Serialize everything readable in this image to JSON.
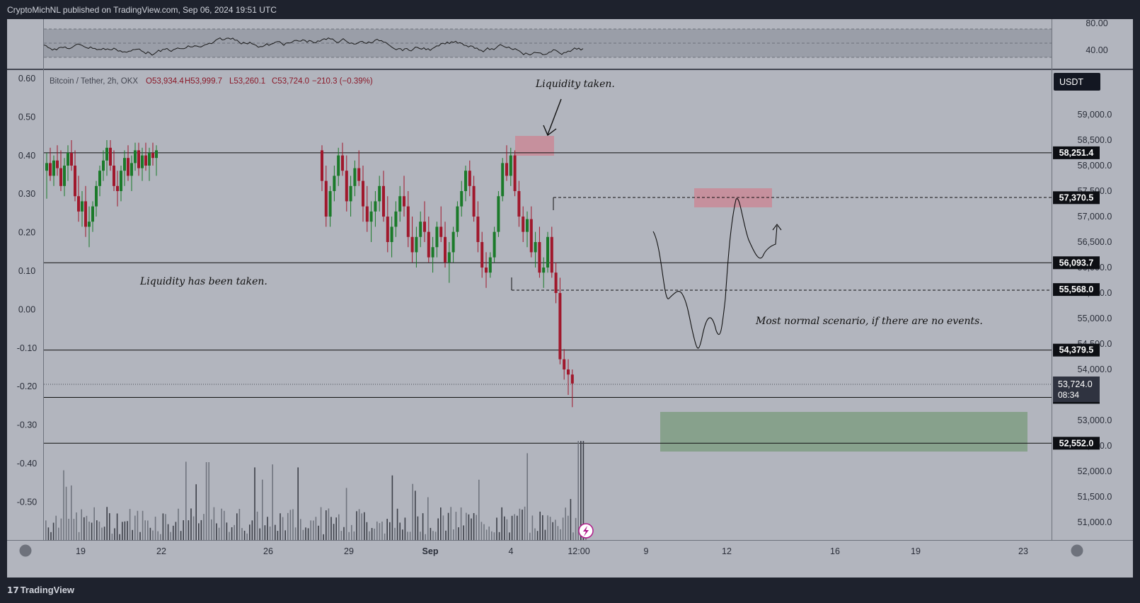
{
  "header": {
    "published": "CryptoMichNL published on TradingView.com, Sep 06, 2024 19:51 UTC"
  },
  "footer": {
    "brand": "TradingView",
    "brand_mark": "17"
  },
  "legend": {
    "symbol": "Bitcoin / Tether, 2h, OKX",
    "open": "O53,934.4",
    "high": "H53,999.7",
    "low": "L53,260.1",
    "close": "C53,724.0",
    "change": "−210.3 (−0.39%)"
  },
  "currency_button": "USDT",
  "colors": {
    "background": "#b2b5be",
    "frame": "#1e222d",
    "up_candle": "#1b7a2a",
    "down_candle": "#a0182c",
    "liquidity_zone": "#c98a98",
    "target_zone": "#7f9e84",
    "volume": "#3c3f48"
  },
  "chart_data": {
    "type": "candlestick",
    "symbol": "Bitcoin / Tether",
    "interval": "2h",
    "exchange": "OKX",
    "price_axis": {
      "ticks": [
        "59,000.0",
        "58,500.0",
        "58,000.0",
        "57,500.0",
        "57,000.0",
        "56,500.0",
        "56,000.0",
        "55,500.0",
        "55,000.0",
        "54,500.0",
        "54,000.0",
        "53,000.0",
        "52,500.0",
        "52,000.0",
        "51,500.0",
        "51,000.0"
      ],
      "tick_values": [
        59000,
        58500,
        58000,
        57500,
        57000,
        56500,
        56000,
        55500,
        55000,
        54500,
        54000,
        53000,
        52500,
        52000,
        51500,
        51000
      ],
      "range": [
        50700,
        59900
      ]
    },
    "price_levels": [
      {
        "value": 58251.4,
        "label": "58,251.4",
        "style": "solid"
      },
      {
        "value": 57370.5,
        "label": "57,370.5",
        "style": "dashed"
      },
      {
        "value": 56093.7,
        "label": "56,093.7",
        "style": "solid"
      },
      {
        "value": 55568.0,
        "label": "55,568.0",
        "style": "dashed"
      },
      {
        "value": 54379.5,
        "label": "54,379.5",
        "style": "solid"
      },
      {
        "value": 53451.7,
        "label": "53,451.7",
        "style": "solid"
      },
      {
        "value": 52552.0,
        "label": "52,552.0",
        "style": "solid"
      }
    ],
    "last_price": {
      "value": 53724.0,
      "label": "53,724.0",
      "countdown": "08:34"
    },
    "left_axis": {
      "ticks": [
        "0.60",
        "0.50",
        "0.40",
        "0.30",
        "0.20",
        "0.10",
        "0.00",
        "-0.10",
        "-0.20",
        "-0.30",
        "-0.40",
        "-0.50"
      ],
      "values": [
        0.6,
        0.5,
        0.4,
        0.3,
        0.2,
        0.1,
        0.0,
        -0.1,
        -0.2,
        -0.3,
        -0.4,
        -0.5
      ]
    },
    "rsi_panel": {
      "ticks": [
        "80.00",
        "40.00"
      ],
      "values": [
        80,
        40
      ],
      "range": [
        30,
        90
      ]
    },
    "time_axis": {
      "labels": [
        "19",
        "22",
        "26",
        "29",
        "Sep",
        "4",
        "12:00",
        "9",
        "12",
        "16",
        "19",
        "23"
      ]
    },
    "annotations": {
      "liquidity_taken": "Liquidity taken.",
      "liquidity_has_been_taken": "Liquidity has been taken.",
      "scenario": "Most normal scenario, if there are no events."
    },
    "candles_ohlc": [
      [
        57900,
        58250,
        57350,
        58050
      ],
      [
        58050,
        58350,
        57700,
        57800
      ],
      [
        57800,
        58200,
        57600,
        58100
      ],
      [
        58100,
        58400,
        57800,
        57950
      ],
      [
        57950,
        58300,
        57500,
        57600
      ],
      [
        57600,
        58150,
        57400,
        58000
      ],
      [
        58000,
        58400,
        57700,
        58250
      ],
      [
        58250,
        58500,
        57900,
        58000
      ],
      [
        58000,
        58300,
        57300,
        57400
      ],
      [
        57400,
        57800,
        56900,
        57100
      ],
      [
        57100,
        57500,
        56800,
        57300
      ],
      [
        57300,
        57600,
        56600,
        56800
      ],
      [
        56800,
        57200,
        56400,
        56900
      ],
      [
        56900,
        57300,
        56700,
        57200
      ],
      [
        57200,
        57700,
        57000,
        57600
      ],
      [
        57600,
        58000,
        57400,
        57900
      ],
      [
        57900,
        58300,
        57700,
        58100
      ],
      [
        58100,
        58500,
        57800,
        58350
      ],
      [
        58350,
        58500,
        57900,
        58000
      ],
      [
        58000,
        58300,
        57500,
        57600
      ],
      [
        57600,
        57900,
        57200,
        57500
      ],
      [
        57500,
        58000,
        57300,
        57900
      ],
      [
        57900,
        58300,
        57600,
        58150
      ],
      [
        58150,
        58400,
        57700,
        57800
      ],
      [
        57800,
        58200,
        57500,
        58050
      ],
      [
        58050,
        58450,
        57900,
        58300
      ],
      [
        58300,
        58450,
        57800,
        57950
      ],
      [
        57950,
        58350,
        57700,
        58200
      ],
      [
        58200,
        58450,
        57900,
        58000
      ],
      [
        58000,
        58350,
        57700,
        58250
      ],
      [
        58250,
        58450,
        58000,
        58150
      ],
      [
        58150,
        58400,
        57800,
        58300
      ],
      [
        58300,
        58400,
        57500,
        57700
      ],
      [
        57700,
        58000,
        56800,
        57000
      ],
      [
        57000,
        57600,
        56800,
        57500
      ],
      [
        57500,
        58000,
        57300,
        57800
      ],
      [
        57800,
        58350,
        57600,
        58200
      ],
      [
        58200,
        58450,
        57800,
        57900
      ],
      [
        57900,
        58200,
        57100,
        57300
      ],
      [
        57300,
        57800,
        57000,
        57600
      ],
      [
        57600,
        58100,
        57400,
        57950
      ],
      [
        57950,
        58300,
        57600,
        57700
      ],
      [
        57700,
        58000,
        56900,
        57200
      ],
      [
        57200,
        57600,
        56700,
        56900
      ],
      [
        56900,
        57300,
        56500,
        57100
      ],
      [
        57100,
        57500,
        56800,
        57300
      ],
      [
        57300,
        57800,
        57100,
        57600
      ],
      [
        57600,
        57900,
        56900,
        57000
      ],
      [
        57000,
        57400,
        56300,
        56500
      ],
      [
        56500,
        57000,
        56200,
        56800
      ],
      [
        56800,
        57300,
        56600,
        57100
      ],
      [
        57100,
        57600,
        56900,
        57400
      ],
      [
        57400,
        57800,
        57000,
        57200
      ],
      [
        57200,
        57500,
        56400,
        56600
      ],
      [
        56600,
        57000,
        56100,
        56300
      ],
      [
        56300,
        56800,
        56000,
        56600
      ],
      [
        56600,
        57100,
        56400,
        56900
      ],
      [
        56900,
        57300,
        56500,
        56700
      ],
      [
        56700,
        57000,
        56100,
        56200
      ],
      [
        56200,
        56600,
        55900,
        56400
      ],
      [
        56400,
        56900,
        56200,
        56800
      ],
      [
        56800,
        57200,
        56500,
        56600
      ],
      [
        56600,
        56900,
        56000,
        56100
      ],
      [
        56100,
        56500,
        55700,
        56300
      ],
      [
        56300,
        56800,
        56100,
        56700
      ],
      [
        56700,
        57300,
        56600,
        57200
      ],
      [
        57200,
        57700,
        57000,
        57500
      ],
      [
        57500,
        58000,
        57300,
        57900
      ],
      [
        57900,
        58100,
        57400,
        57600
      ],
      [
        57600,
        57800,
        56900,
        57000
      ],
      [
        57000,
        57300,
        56300,
        56500
      ],
      [
        56500,
        56700,
        55800,
        56000
      ],
      [
        56000,
        56300,
        55600,
        55900
      ],
      [
        55900,
        56300,
        55800,
        56200
      ],
      [
        56200,
        56800,
        56100,
        56700
      ],
      [
        56700,
        57500,
        56600,
        57400
      ],
      [
        57400,
        58150,
        57300,
        58050
      ],
      [
        58050,
        58400,
        57700,
        57800
      ],
      [
        57800,
        58350,
        57600,
        58200
      ],
      [
        58200,
        58300,
        57400,
        57500
      ],
      [
        57500,
        57700,
        56800,
        57000
      ],
      [
        57000,
        57200,
        56500,
        56700
      ],
      [
        56700,
        57100,
        56400,
        56950
      ],
      [
        56950,
        57200,
        56200,
        56300
      ],
      [
        56300,
        56700,
        56000,
        56500
      ],
      [
        56500,
        56800,
        55800,
        55900
      ],
      [
        55900,
        56200,
        55600,
        56000
      ],
      [
        56000,
        56700,
        55900,
        56600
      ],
      [
        56600,
        56800,
        55800,
        55900
      ],
      [
        55900,
        56100,
        55300,
        55500
      ],
      [
        55500,
        55800,
        54100,
        54200
      ],
      [
        54200,
        54400,
        53800,
        54000
      ],
      [
        54000,
        54200,
        53500,
        53900
      ],
      [
        53900,
        54000,
        53260,
        53724
      ]
    ],
    "volume_note": "volume histogram bars along the bottom of the price pane"
  }
}
